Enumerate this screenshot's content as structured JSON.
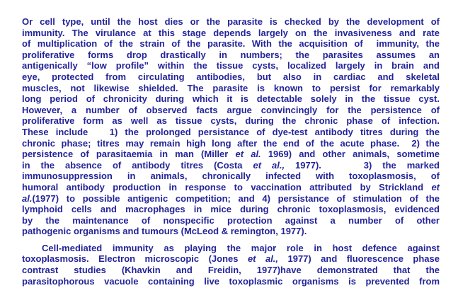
{
  "paragraph1": [
    {
      "text": "Or cell type, until the host dies or the parasite is checked by the development of"
    },
    {
      "text": "immunity. The virulance at this stage depends largely on the invasiveness and rate"
    },
    {
      "text": "of multiplication of the strain of the parasite. With the acquisition of  immunity, the"
    },
    {
      "text": "proliferative forms drop drastically in numbers; the parasites assumes an"
    },
    {
      "text": "antigenically “low profile” within the tissue cysts, localized largely in brain and"
    },
    {
      "text": "eye, protected from circulating antibodies, but also in cardiac and skeletal"
    },
    {
      "text": "muscles, not likewise shielded. The parasite is known to persist for remarkably"
    },
    {
      "text": "long period of chronicity during which it is detectable solely in the tissue cyst."
    },
    {
      "text": "However, a number of observed facts argue convincingly for the persistence of"
    },
    {
      "text": "proliferative form as well as tissue cysts, during the chronic phase of infection."
    },
    {
      "text": "These include   1) the prolonged persistance of dye-test antibody titres during the"
    },
    {
      "text": "chronic phase; titres may remain high long after the end of the acute phase.  2) the"
    },
    {
      "pre": "persistence of parasitaemia in man (Miller ",
      "em": "et al.",
      "post": " 1969) and other animals, sometime"
    },
    {
      "pre": "in the absence of antibody titres (Costa ",
      "em": "et al.,",
      "post": " 1977).    3) the marked"
    },
    {
      "text": "immunosuppression in animals, chronically infected with toxoplasmosis, of"
    },
    {
      "pre": "humoral antibody production in response to vaccination attributed by Strickland ",
      "em": "et",
      "post": ""
    },
    {
      "pre": "",
      "em": "al.",
      "post": "(1977) to possible antigenic competition; and 4) persistance of stimulation of the"
    },
    {
      "text": "lymphoid cells and macrophages in mice during chronic toxoplasmosis, evidenced"
    },
    {
      "text": "by the maintenance of nonspecific protection against a number of other"
    },
    {
      "text": "pathogenic organisms and tumours (McLeod & remington, 1977)."
    }
  ],
  "paragraph2": [
    {
      "text": "Cell-mediated immunity as playing the major role in host defence against"
    },
    {
      "pre": "toxoplasmosis. Electron microscopic (Jones ",
      "em": "et al.,",
      "post": " 1977) and fluorescence phase"
    },
    {
      "text": "contrast studies (Khavkin and Freidin, 1977)have demonstrated that the"
    },
    {
      "text": "parasitophorous vacuole containing live toxoplasmic organisms is prevented from"
    }
  ]
}
